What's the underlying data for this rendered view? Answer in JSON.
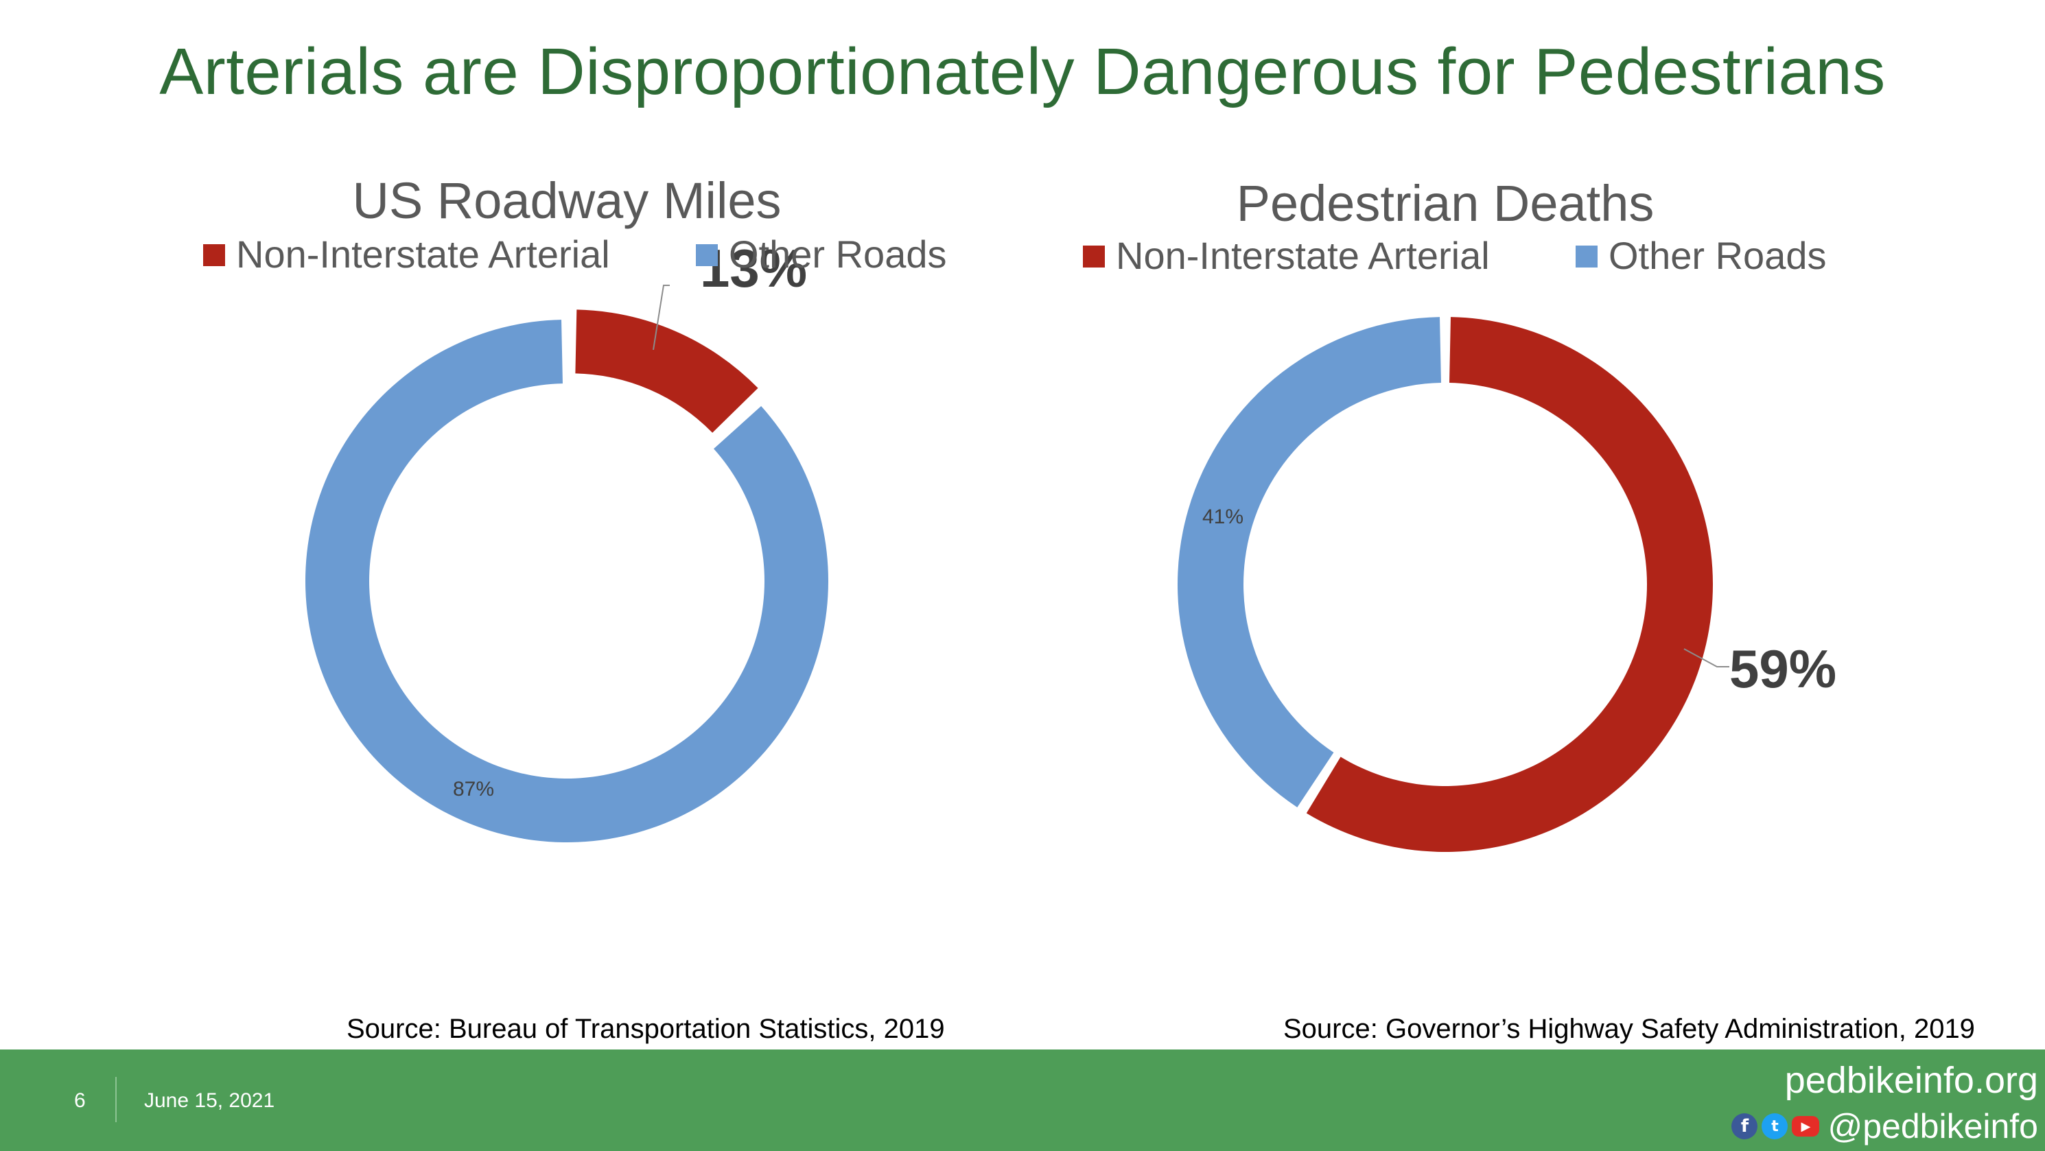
{
  "title": "Arterials are Disproportionately Dangerous for Pedestrians",
  "chart_data": [
    {
      "type": "pie",
      "style": "donut",
      "title": "US Roadway Miles",
      "categories": [
        "Non-Interstate Arterial",
        "Other Roads"
      ],
      "values": [
        13,
        87
      ],
      "labels": [
        "13%",
        "87%"
      ],
      "colors": [
        "#b02418",
        "#6b9bd2"
      ],
      "legend": "bottom",
      "source": "Source: Bureau of Transportation Statistics, 2019"
    },
    {
      "type": "pie",
      "style": "donut",
      "title": "Pedestrian Deaths",
      "categories": [
        "Non-Interstate Arterial",
        "Other Roads"
      ],
      "values": [
        59,
        41
      ],
      "labels": [
        "59%",
        "41%"
      ],
      "colors": [
        "#b02418",
        "#6b9bd2"
      ],
      "legend": "bottom",
      "source": "Source: Governor’s Highway Safety Administration, 2019"
    }
  ],
  "footer": {
    "page_number": "6",
    "date": "June 15, 2021",
    "site": "pedbikeinfo.org",
    "handle": "@pedbikeinfo",
    "icons": [
      "facebook-icon",
      "twitter-icon",
      "youtube-icon"
    ],
    "background": "#4e9d57"
  }
}
